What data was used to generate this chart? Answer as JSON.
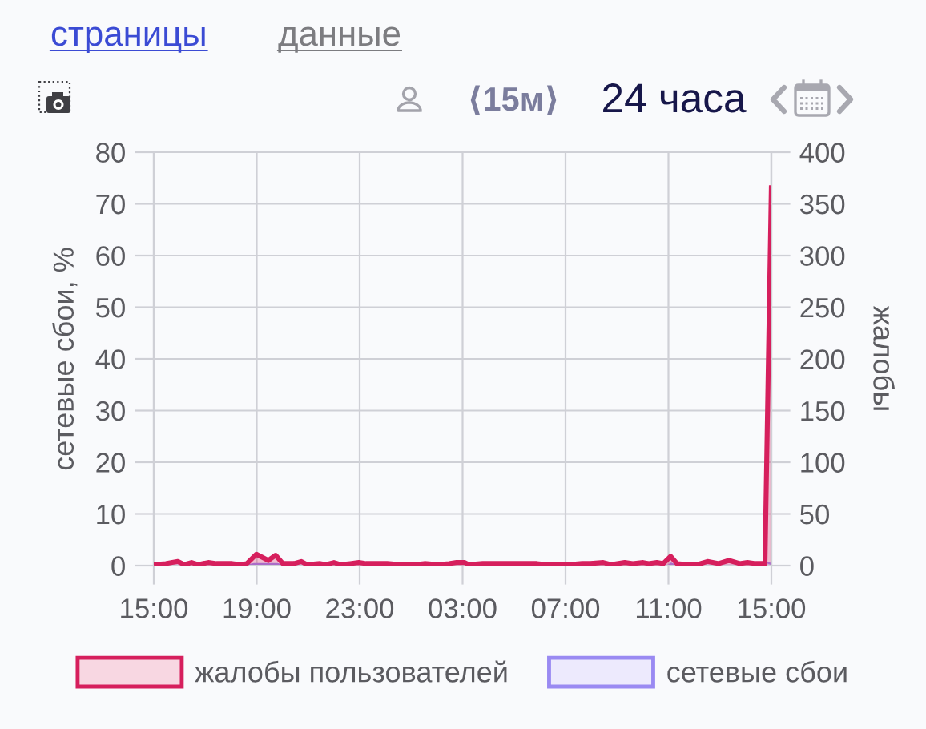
{
  "chart_data": {
    "type": "area",
    "annotations": [
      "страницы",
      "данные",
      "⟨15м⟩",
      "24 часа"
    ],
    "ylabel": "сетевые сбои, %",
    "y2label": "жалобы",
    "xlim": [
      "2000-01-01T15:00",
      "2000-01-02T15:00"
    ],
    "xticks": [
      {
        "value": "2000-01-01T15:00",
        "label": "15:00"
      },
      {
        "value": "2000-01-01T19:00",
        "label": "19:00"
      },
      {
        "value": "2000-01-01T23:00",
        "label": "23:00"
      },
      {
        "value": "2000-01-02T03:00",
        "label": "03:00"
      },
      {
        "value": "2000-01-02T07:00",
        "label": "07:00"
      },
      {
        "value": "2000-01-02T11:00",
        "label": "11:00"
      },
      {
        "value": "2000-01-02T15:00",
        "label": "15:00"
      }
    ],
    "ylim": [
      0,
      80
    ],
    "yticks": [
      0,
      10,
      20,
      30,
      40,
      50,
      60,
      70,
      80
    ],
    "y2lim": [
      0,
      400
    ],
    "y2ticks": [
      0,
      50,
      100,
      150,
      200,
      250,
      300,
      350,
      400
    ],
    "grid": true,
    "legend": "bottom",
    "series": [
      {
        "name": "жалобы пользователей",
        "color": "#d61f5d",
        "axis": "y2",
        "x": [
          "2000-01-01T15:00",
          "2000-01-01T15:28",
          "2000-01-01T15:56",
          "2000-01-01T16:11",
          "2000-01-01T16:28",
          "2000-01-01T16:43",
          "2000-01-01T17:07",
          "2000-01-01T17:26",
          "2000-01-01T17:44",
          "2000-01-01T18:03",
          "2000-01-01T18:22",
          "2000-01-01T18:37",
          "2000-01-01T18:59",
          "2000-01-01T19:27",
          "2000-01-01T19:44",
          "2000-01-01T20:01",
          "2000-01-01T20:27",
          "2000-01-01T20:44",
          "2000-01-01T20:57",
          "2000-01-01T21:28",
          "2000-01-01T21:41",
          "2000-01-01T22:00",
          "2000-01-01T22:15",
          "2000-01-01T22:38",
          "2000-01-01T22:58",
          "2000-01-01T23:15",
          "2000-01-01T23:34",
          "2000-01-02T00:04",
          "2000-01-02T00:35",
          "2000-01-02T01:07",
          "2000-01-02T01:31",
          "2000-01-02T02:03",
          "2000-01-02T02:28",
          "2000-01-02T02:46",
          "2000-01-02T03:05",
          "2000-01-02T03:14",
          "2000-01-02T03:47",
          "2000-01-02T04:19",
          "2000-01-02T04:51",
          "2000-01-02T05:34",
          "2000-01-02T05:53",
          "2000-01-02T06:17",
          "2000-01-02T07:07",
          "2000-01-02T07:39",
          "2000-01-02T07:58",
          "2000-01-02T08:28",
          "2000-01-02T08:46",
          "2000-01-02T09:18",
          "2000-01-02T09:37",
          "2000-01-02T10:01",
          "2000-01-02T10:14",
          "2000-01-02T10:33",
          "2000-01-02T10:48",
          "2000-01-02T11:05",
          "2000-01-02T11:20",
          "2000-01-02T11:47",
          "2000-01-02T12:07",
          "2000-01-02T12:31",
          "2000-01-02T12:57",
          "2000-01-02T13:21",
          "2000-01-02T13:46",
          "2000-01-02T14:04",
          "2000-01-02T14:23",
          "2000-01-02T14:45",
          "2000-01-02T15:00"
        ],
        "values": [
          1,
          2,
          4,
          1,
          3,
          1,
          3,
          2,
          2,
          2,
          1,
          2,
          11,
          5,
          10,
          2,
          2,
          4,
          1,
          2,
          1,
          3,
          1,
          2,
          3,
          2,
          2,
          2,
          1,
          1,
          2,
          1,
          2,
          3,
          3,
          1,
          2,
          2,
          2,
          2,
          2,
          1,
          1,
          2,
          2,
          3,
          1,
          3,
          2,
          3,
          2,
          3,
          2,
          9,
          2,
          1,
          1,
          4,
          2,
          5,
          2,
          3,
          2,
          2,
          368
        ]
      },
      {
        "name": "сетевые сбои",
        "color": "#9a8af2",
        "axis": "y",
        "x": [
          "2000-01-01T15:00",
          "2000-01-01T18:36",
          "2000-01-01T18:54",
          "2000-01-01T19:48",
          "2000-01-01T20:03",
          "2000-01-02T09:54",
          "2000-01-02T10:18",
          "2000-01-02T10:42",
          "2000-01-02T11:00",
          "2000-01-02T11:06",
          "2000-01-02T11:18",
          "2000-01-02T14:30",
          "2000-01-02T14:51",
          "2000-01-02T15:00"
        ],
        "values": [
          0,
          0,
          0.3,
          0.3,
          0,
          0,
          0.2,
          0,
          0,
          0.4,
          0,
          0,
          0.6,
          0.3
        ]
      }
    ]
  }
}
